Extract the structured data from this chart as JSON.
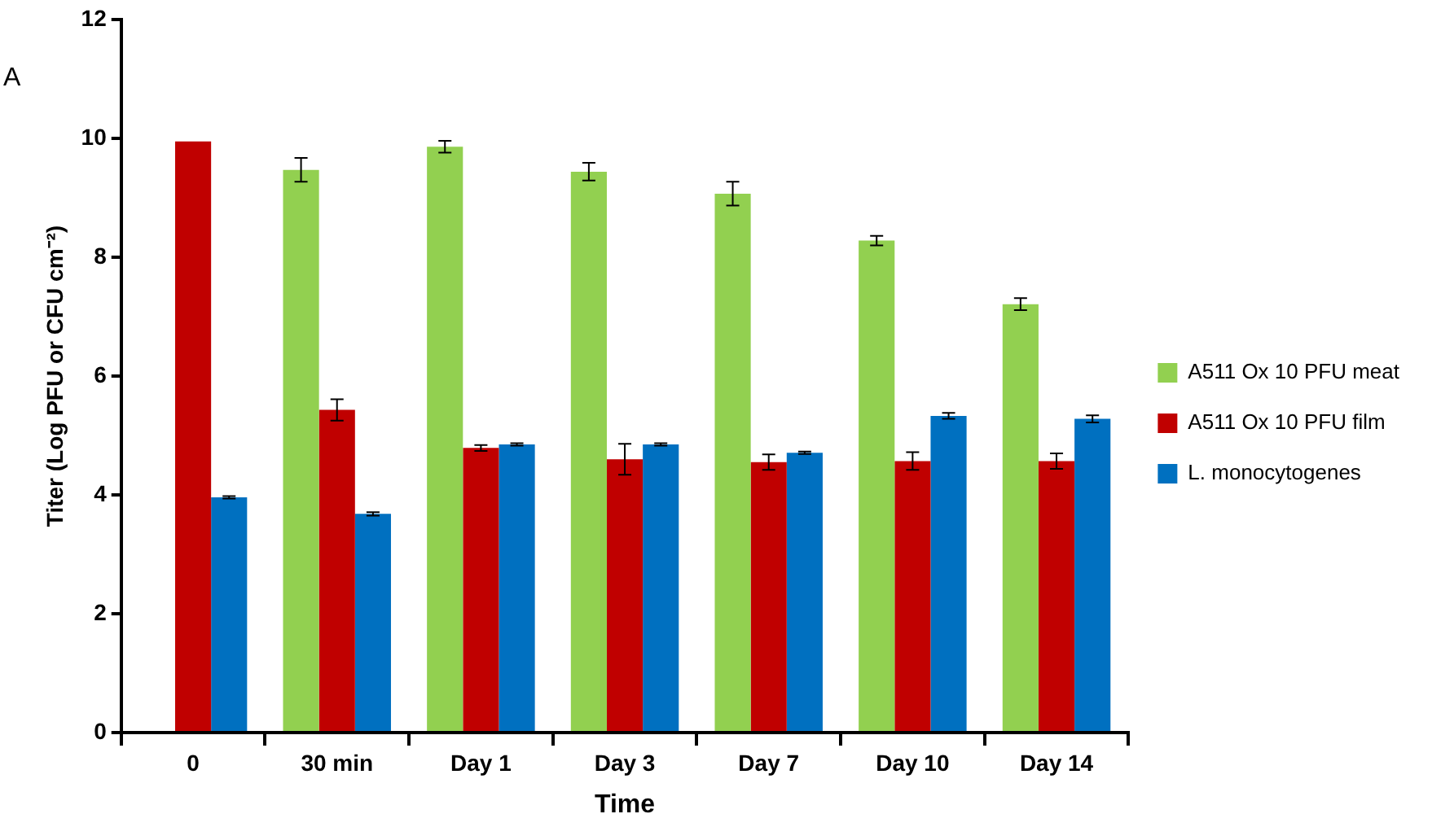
{
  "chart_data": {
    "type": "bar",
    "xlabel": "Time",
    "ylabel": "Titer (Log PFU or CFU cm⁻²)",
    "annotations": [
      "A"
    ],
    "categories": [
      "0",
      "30 min",
      "Day 1",
      "Day 3",
      "Day 7",
      "Day 10",
      "Day 14"
    ],
    "series": [
      {
        "name": "A511 Ox 10 PFU meat",
        "color": "#92d050",
        "values": [
          null,
          9.47,
          9.86,
          9.44,
          9.07,
          8.28,
          7.21
        ],
        "errors": [
          null,
          0.2,
          0.1,
          0.15,
          0.2,
          0.08,
          0.1
        ]
      },
      {
        "name": "A511 Ox 10 PFU film",
        "color": "#c00000",
        "values": [
          9.95,
          5.43,
          4.79,
          4.6,
          4.55,
          4.57,
          4.57
        ],
        "errors": [
          null,
          0.18,
          0.05,
          0.26,
          0.13,
          0.15,
          0.13
        ]
      },
      {
        "name": "L. monocytogenes",
        "color": "#0070c0",
        "values": [
          3.96,
          3.68,
          4.85,
          4.85,
          4.71,
          5.33,
          5.28
        ],
        "errors": [
          0.02,
          0.03,
          0.02,
          0.02,
          0.02,
          0.05,
          0.06
        ]
      }
    ],
    "ylim": [
      0,
      12
    ],
    "yticks": [
      0,
      2,
      4,
      6,
      8,
      10,
      12
    ],
    "grid": false,
    "legend": "right"
  }
}
